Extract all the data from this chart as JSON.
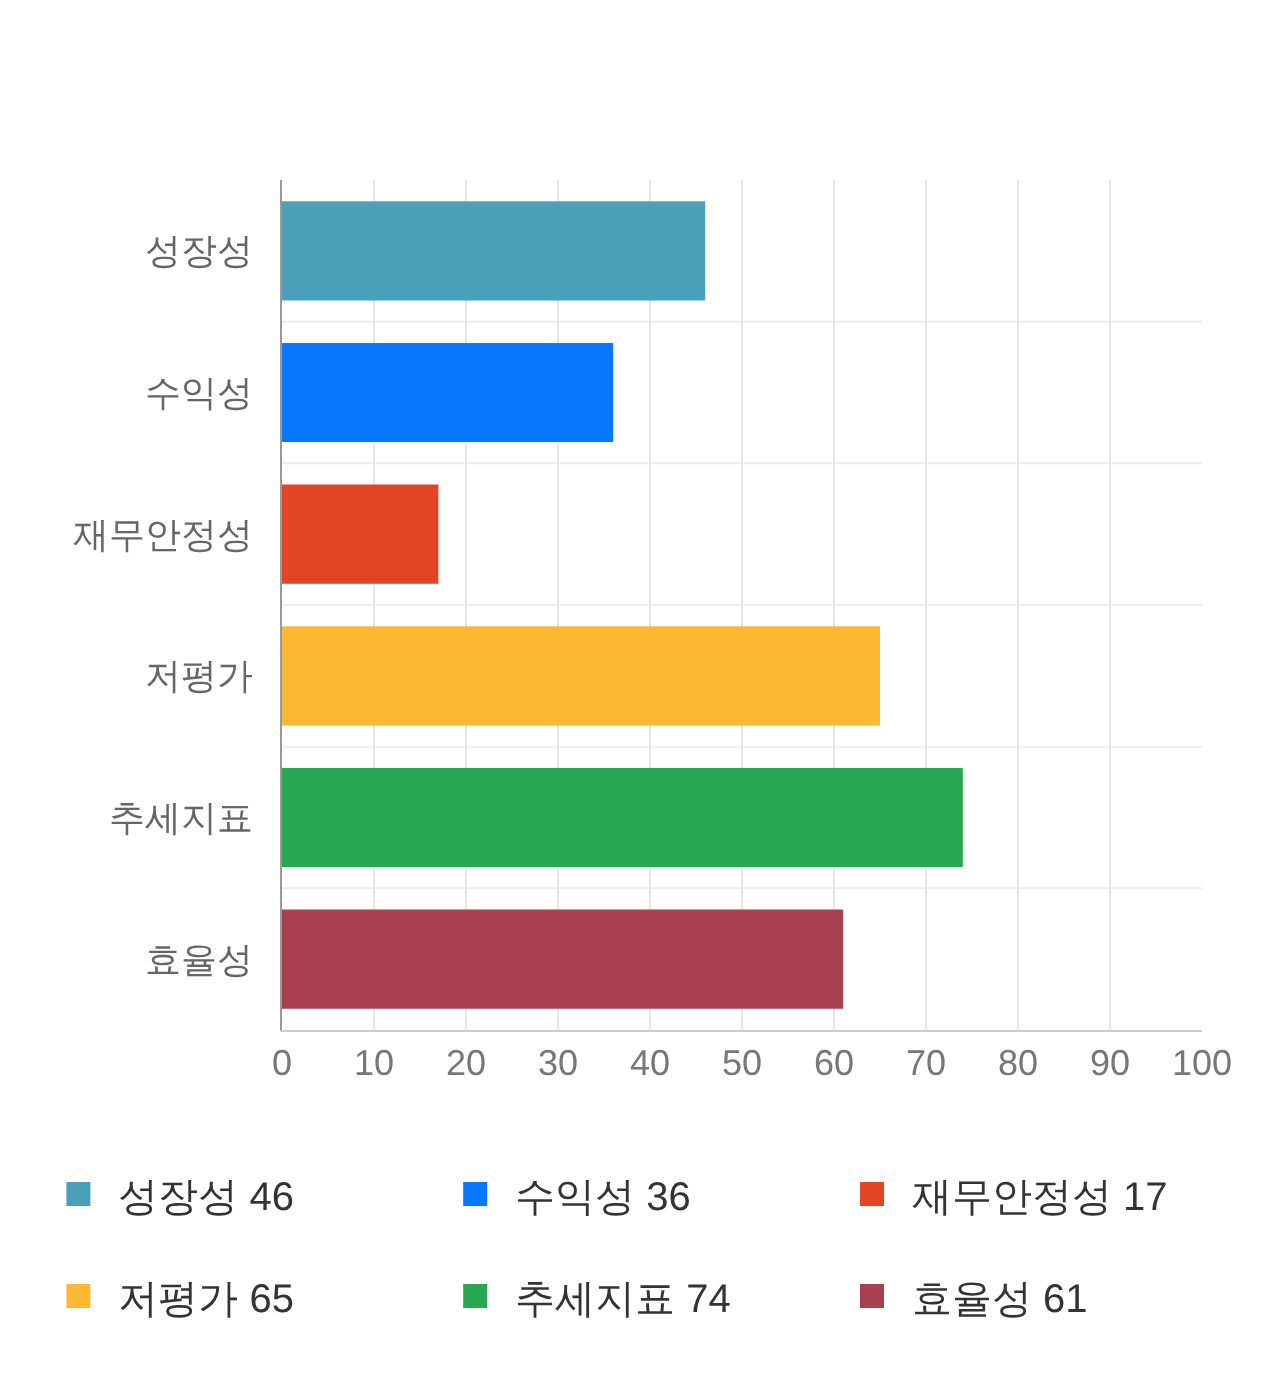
{
  "chart_data": {
    "type": "bar",
    "orientation": "horizontal",
    "categories": [
      "성장성",
      "수익성",
      "재무안정성",
      "저평가",
      "추세지표",
      "효율성"
    ],
    "series": [
      {
        "name": "성장성 46",
        "color": "#4aa0b9",
        "values": [
          46,
          null,
          null,
          null,
          null,
          null
        ]
      },
      {
        "name": "수익성 36",
        "color": "#0a77ff",
        "values": [
          null,
          36,
          null,
          null,
          null,
          null
        ]
      },
      {
        "name": "재무안정성 17",
        "color": "#e24524",
        "values": [
          null,
          null,
          17,
          null,
          null,
          null
        ]
      },
      {
        "name": "저평가 65",
        "color": "#fdb833",
        "values": [
          null,
          null,
          null,
          65,
          null,
          null
        ]
      },
      {
        "name": "추세지표 74",
        "color": "#29a853",
        "values": [
          null,
          null,
          null,
          null,
          74,
          null
        ]
      },
      {
        "name": "효율성 61",
        "color": "#a8404f",
        "values": [
          null,
          null,
          null,
          null,
          null,
          61
        ]
      }
    ],
    "xlim": [
      0,
      100
    ],
    "xticks": [
      0,
      10,
      20,
      30,
      40,
      50,
      60,
      70,
      80,
      90,
      100
    ],
    "grid": "x",
    "legend": "bottom"
  }
}
